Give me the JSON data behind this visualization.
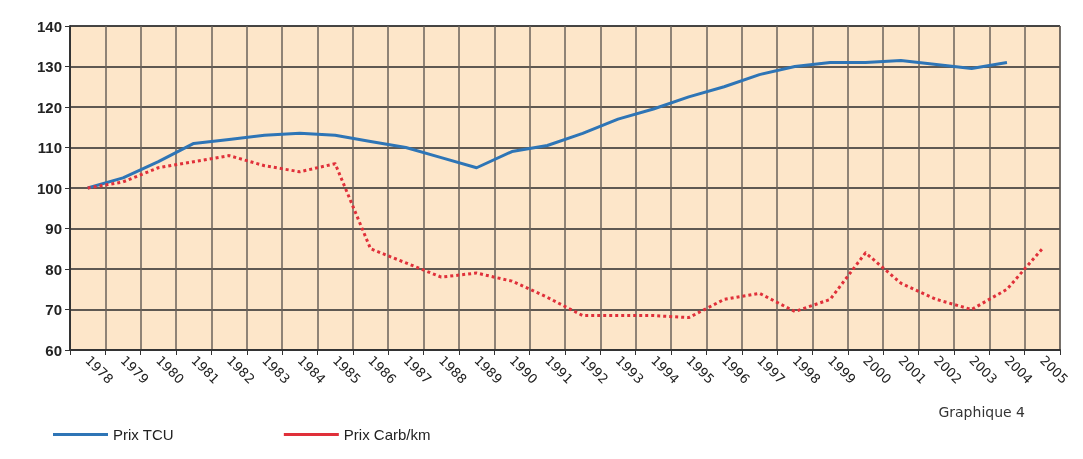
{
  "chart_data": {
    "type": "line",
    "categories": [
      "1978",
      "1979",
      "1980",
      "1981",
      "1982",
      "1983",
      "1984",
      "1985",
      "1986",
      "1987",
      "1988",
      "1989",
      "1990",
      "1991",
      "1992",
      "1993",
      "1994",
      "1995",
      "1996",
      "1997",
      "1998",
      "1999",
      "2000",
      "2001",
      "2002",
      "2003",
      "2004",
      "2005"
    ],
    "series": [
      {
        "name": "Prix TCU",
        "color": "#2e75b6",
        "line_style": "solid",
        "values": [
          100,
          102.5,
          106.5,
          111,
          112,
          113,
          113.5,
          113,
          111.5,
          110,
          107.5,
          105,
          109,
          110.5,
          113.5,
          117,
          119.5,
          122.5,
          125,
          128,
          130,
          131,
          131,
          131.5,
          130.5,
          129.5,
          131,
          null
        ]
      },
      {
        "name": "Prix Carb/km",
        "color": "#e0303a",
        "line_style": "dotted",
        "values": [
          100,
          101.5,
          105,
          106.5,
          108,
          105.5,
          104,
          106,
          85,
          81.5,
          78,
          79,
          77,
          73,
          68.5,
          68.5,
          68.5,
          68,
          72.5,
          74,
          69.5,
          72.5,
          84,
          76.5,
          72.5,
          70,
          75,
          85
        ]
      }
    ],
    "ylim": [
      60,
      140
    ],
    "yticks": [
      60,
      70,
      80,
      90,
      100,
      110,
      120,
      130,
      140
    ],
    "grid": true,
    "legend": "bottom left",
    "marker": "none",
    "annotations": [
      "Graphique 4"
    ]
  }
}
